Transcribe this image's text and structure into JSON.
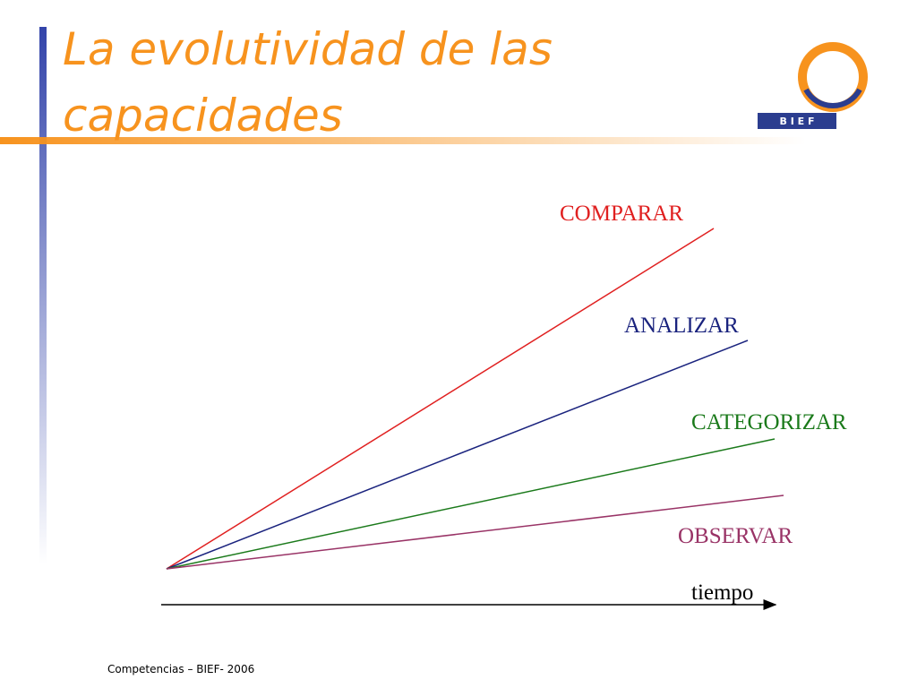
{
  "header": {
    "title": "La evolutividad de las capacidades",
    "logo": "B I E F"
  },
  "diagram": {
    "lines": [
      {
        "label": "COMPARAR"
      },
      {
        "label": "ANALIZAR"
      },
      {
        "label": "CATEGORIZAR"
      },
      {
        "label": "OBSERVAR"
      }
    ],
    "axis_label": "tiempo"
  },
  "footer": "Competencias – BIEF- 2006"
}
